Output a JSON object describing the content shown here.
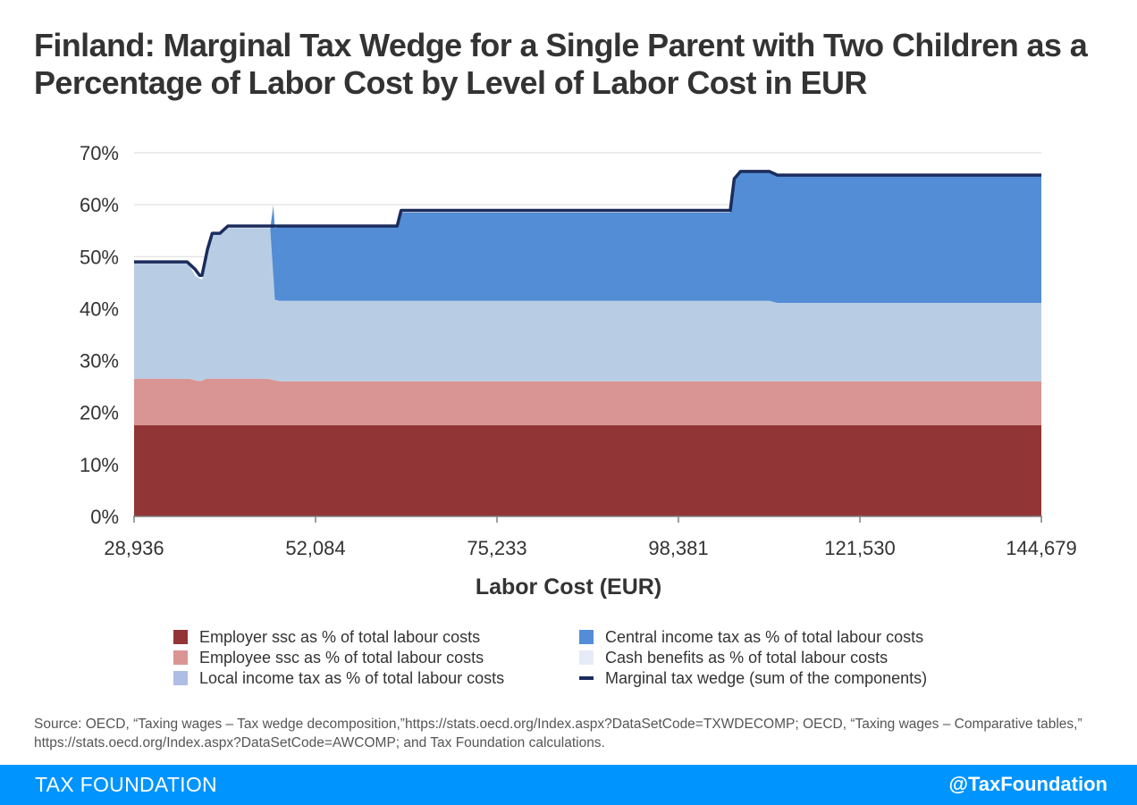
{
  "title": "Finland: Marginal Tax Wedge for a Single Parent with Two Children as a Percentage of Labor Cost by Level of Labor Cost in EUR",
  "chart_data": {
    "type": "area",
    "xlabel": "Labor Cost (EUR)",
    "ylabel": "",
    "xlim": [
      28936,
      144679
    ],
    "ylim": [
      0,
      70
    ],
    "x_ticks": [
      "28,936",
      "52,084",
      "75,233",
      "98,381",
      "121,530",
      "144,679"
    ],
    "y_ticks": [
      "0%",
      "10%",
      "20%",
      "30%",
      "40%",
      "50%",
      "60%",
      "70%"
    ],
    "grid": true,
    "legend_position": "bottom",
    "stack_order": [
      "employer_ssc",
      "employee_ssc",
      "local_income_tax",
      "central_income_tax",
      "cash_benefits"
    ],
    "series": {
      "employer_ssc": {
        "name": "Employer ssc as % of total labour costs",
        "color": "#923536",
        "points": [
          [
            28936,
            17.6
          ],
          [
            144679,
            17.6
          ]
        ]
      },
      "employee_ssc": {
        "name": "Employee ssc as % of total labour costs",
        "color": "#d99593",
        "points": [
          [
            28936,
            8.9
          ],
          [
            36000,
            8.9
          ],
          [
            37000,
            8.5
          ],
          [
            37600,
            8.5
          ],
          [
            38100,
            8.9
          ],
          [
            46000,
            8.9
          ],
          [
            47500,
            8.4
          ],
          [
            144679,
            8.4
          ]
        ]
      },
      "local_income_tax": {
        "name": "Local income tax as % of total labour costs",
        "color": "#b8cde4",
        "points": [
          [
            28936,
            22.5
          ],
          [
            35700,
            22.5
          ],
          [
            36700,
            20.2
          ],
          [
            37600,
            19.5
          ],
          [
            38300,
            24.0
          ],
          [
            38900,
            27.8
          ],
          [
            39900,
            27.8
          ],
          [
            40900,
            29.0
          ],
          [
            46300,
            29.0
          ],
          [
            46900,
            15.5
          ],
          [
            47500,
            15.5
          ],
          [
            110000,
            15.5
          ],
          [
            111000,
            15.1
          ],
          [
            144679,
            15.1
          ]
        ]
      },
      "central_income_tax": {
        "name": "Central income tax as % of total labour costs",
        "color": "#538dd5",
        "points": [
          [
            28936,
            0
          ],
          [
            46300,
            0
          ],
          [
            46700,
            13.6
          ],
          [
            47500,
            14.3
          ],
          [
            62500,
            14.3
          ],
          [
            63000,
            17.0
          ],
          [
            105000,
            17.0
          ],
          [
            105500,
            23.1
          ],
          [
            106300,
            24.8
          ],
          [
            110000,
            24.8
          ],
          [
            111000,
            24.6
          ],
          [
            144679,
            24.6
          ]
        ]
      },
      "cash_benefits": {
        "name": "Cash benefits as % of total labour costs",
        "color": "#e7ebf7",
        "points": [
          [
            28936,
            0
          ],
          [
            144679,
            0
          ]
        ]
      },
      "marginal_tax_wedge": {
        "name": "Marginal tax wedge (sum of the components)",
        "color": "#1b2c5c",
        "points": [
          [
            28936,
            49.0
          ],
          [
            35700,
            49.0
          ],
          [
            36700,
            47.6
          ],
          [
            37300,
            46.4
          ],
          [
            37600,
            46.4
          ],
          [
            38300,
            51.4
          ],
          [
            38900,
            54.5
          ],
          [
            39900,
            54.5
          ],
          [
            40900,
            55.9
          ],
          [
            62500,
            55.9
          ],
          [
            63000,
            58.9
          ],
          [
            105000,
            58.9
          ],
          [
            105500,
            65.0
          ],
          [
            106300,
            66.4
          ],
          [
            110000,
            66.4
          ],
          [
            111000,
            65.7
          ],
          [
            144679,
            65.7
          ]
        ]
      }
    }
  },
  "legend": {
    "items": [
      {
        "key": "employer_ssc",
        "label": "Employer ssc as % of total labour costs",
        "color": "#923536",
        "kind": "box"
      },
      {
        "key": "central_income_tax",
        "label": "Central income tax as % of total labour costs",
        "color": "#538dd5",
        "kind": "box"
      },
      {
        "key": "employee_ssc",
        "label": "Employee ssc as % of total labour costs",
        "color": "#d99593",
        "kind": "box"
      },
      {
        "key": "cash_benefits",
        "label": "Cash benefits as % of total labour costs",
        "color": "#e7ebf7",
        "kind": "box"
      },
      {
        "key": "local_income_tax",
        "label": "Local income tax as % of total labour costs",
        "color": "#aebde4",
        "kind": "box"
      },
      {
        "key": "marginal_tax_wedge",
        "label": "Marginal tax wedge (sum of the components)",
        "color": "#1b2c5c",
        "kind": "line"
      }
    ]
  },
  "source": "Source: OECD, “Taxing wages – Tax wedge decomposition,”https://stats.oecd.org/Index.aspx?DataSetCode=TXWDECOMP; OECD, “Taxing wages – Comparative tables,” https://stats.oecd.org/Index.aspx?DataSetCode=AWCOMP; and Tax Foundation calculations.",
  "footer": {
    "brand": "TAX FOUNDATION",
    "handle": "@TaxFoundation",
    "color": "#0094ff"
  }
}
